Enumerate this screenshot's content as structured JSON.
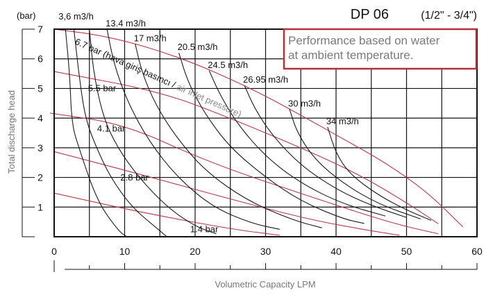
{
  "chart_data": {
    "type": "line",
    "title": "DP 06",
    "subtitle": "(1/2\" - 3/4\")",
    "note_lines": [
      "Performance based on water",
      "at ambient temperature."
    ],
    "xlabel": "Volumetric Capacity LPM",
    "ylabel": "Total discharge head",
    "yunit": "(bar)",
    "xlim": [
      0,
      60
    ],
    "ylim": [
      0,
      7
    ],
    "xticks": [
      "0",
      "10",
      "20",
      "30",
      "40",
      "50",
      "60"
    ],
    "yticks": [
      "1",
      "2",
      "3",
      "4",
      "5",
      "6",
      "7"
    ],
    "grid": true,
    "colors": {
      "pressure": "#b23a48",
      "air": "#1a1a1a",
      "note_border": "#b5303a",
      "note_text": "#7a7a7a"
    },
    "pressure_annotation": {
      "main": "6.7 bar (hava giriş basıncı / ",
      "rest": "air inlet pressure)"
    },
    "pressure_series": [
      {
        "name": "6.7 bar",
        "points": [
          [
            0,
            7
          ],
          [
            8,
            6.75
          ],
          [
            18,
            6.05
          ],
          [
            28,
            5.0
          ],
          [
            35,
            4.1
          ],
          [
            41,
            3.3
          ],
          [
            47,
            2.5
          ],
          [
            53,
            1.5
          ],
          [
            58,
            0.33
          ]
        ]
      },
      {
        "name": "5.5 bar",
        "points": [
          [
            0,
            5.57
          ],
          [
            15,
            4.9
          ],
          [
            25,
            4.0
          ],
          [
            37,
            2.8
          ],
          [
            44,
            2.0
          ],
          [
            50,
            1.15
          ],
          [
            54.5,
            0.44
          ]
        ]
      },
      {
        "name": "4.1 bar",
        "points": [
          [
            -0.6,
            4.17
          ],
          [
            10,
            3.8
          ],
          [
            22,
            2.5
          ],
          [
            37,
            1.3
          ],
          [
            48,
            0.45
          ],
          [
            54.5,
            0.1
          ]
        ]
      },
      {
        "name": "2.8 bar",
        "points": [
          [
            0,
            2.87
          ],
          [
            12,
            2.12
          ],
          [
            27,
            1.14
          ],
          [
            37,
            0.54
          ],
          [
            45,
            0.2
          ],
          [
            49,
            0.05
          ]
        ]
      },
      {
        "name": "1.4 bar",
        "points": [
          [
            0,
            1.47
          ],
          [
            12,
            0.84
          ],
          [
            25,
            0.26
          ],
          [
            32,
            0.05
          ]
        ]
      }
    ],
    "air_series": [
      {
        "name": "3,6 m3/h",
        "points": [
          [
            1.6,
            7
          ],
          [
            2.2,
            5.5
          ],
          [
            2.5,
            3.8
          ],
          [
            3.5,
            3.0
          ],
          [
            6.1,
            1.2
          ],
          [
            9.1,
            0.2
          ],
          [
            10.3,
            0
          ]
        ]
      },
      {
        "name": "",
        "points": [
          [
            2.8,
            7
          ],
          [
            3.5,
            5.5
          ],
          [
            4.4,
            4
          ],
          [
            6,
            3
          ],
          [
            8,
            2
          ],
          [
            11,
            1
          ],
          [
            14.5,
            0.3
          ],
          [
            16,
            0
          ]
        ]
      },
      {
        "name": "",
        "points": [
          [
            5,
            7
          ],
          [
            5.6,
            5.5
          ],
          [
            7,
            4
          ],
          [
            9,
            3
          ],
          [
            12,
            2
          ],
          [
            16,
            1
          ],
          [
            20,
            0.35
          ],
          [
            23,
            0.1
          ]
        ]
      },
      {
        "name": "13.4 m3/h",
        "points": [
          [
            7.5,
            7
          ],
          [
            8.5,
            5.8
          ],
          [
            10.5,
            4.5
          ],
          [
            13.5,
            3.2
          ],
          [
            17.5,
            2
          ],
          [
            22.5,
            1
          ],
          [
            28,
            0.45
          ],
          [
            32,
            0.25
          ]
        ]
      },
      {
        "name": "17 m3/h",
        "points": [
          [
            11.5,
            6.5
          ],
          [
            12.5,
            5.5
          ],
          [
            14.5,
            4.4
          ],
          [
            17.5,
            3.3
          ],
          [
            21.5,
            2.2
          ],
          [
            27.5,
            1.2
          ],
          [
            34,
            0.55
          ],
          [
            38,
            0.3
          ]
        ]
      },
      {
        "name": "20.5 m3/h",
        "points": [
          [
            17.7,
            6.2
          ],
          [
            19,
            5.2
          ],
          [
            21.5,
            4.1
          ],
          [
            25,
            3
          ],
          [
            30,
            2
          ],
          [
            35,
            1.2
          ],
          [
            41,
            0.6
          ],
          [
            44,
            0.45
          ]
        ]
      },
      {
        "name": "24.5 m3/h",
        "points": [
          [
            22,
            5.6
          ],
          [
            23.5,
            4.8
          ],
          [
            26,
            3.8
          ],
          [
            30,
            2.7
          ],
          [
            35,
            1.8
          ],
          [
            41,
            1.1
          ],
          [
            47,
            0.7
          ]
        ]
      },
      {
        "name": "26.95 m3/h",
        "points": [
          [
            27,
            5.1
          ],
          [
            28.5,
            4.3
          ],
          [
            31,
            3.4
          ],
          [
            35,
            2.4
          ],
          [
            40,
            1.6
          ],
          [
            45,
            1.05
          ],
          [
            50,
            0.65
          ]
        ]
      },
      {
        "name": "30 m3/h",
        "points": [
          [
            33.4,
            4.3
          ],
          [
            34.5,
            3.5
          ],
          [
            37,
            2.6
          ],
          [
            41,
            1.8
          ],
          [
            46,
            1.1
          ],
          [
            52,
            0.6
          ]
        ]
      },
      {
        "name": "34 m3/h",
        "points": [
          [
            38.8,
            3.7
          ],
          [
            40,
            2.8
          ],
          [
            42,
            2.1
          ],
          [
            46,
            1.4
          ],
          [
            50,
            0.9
          ],
          [
            53.5,
            0.55
          ]
        ]
      }
    ],
    "pressure_labels": [
      "5.5 bar",
      "4.1 bar",
      "2.8 bar",
      "1.4 bar"
    ]
  }
}
